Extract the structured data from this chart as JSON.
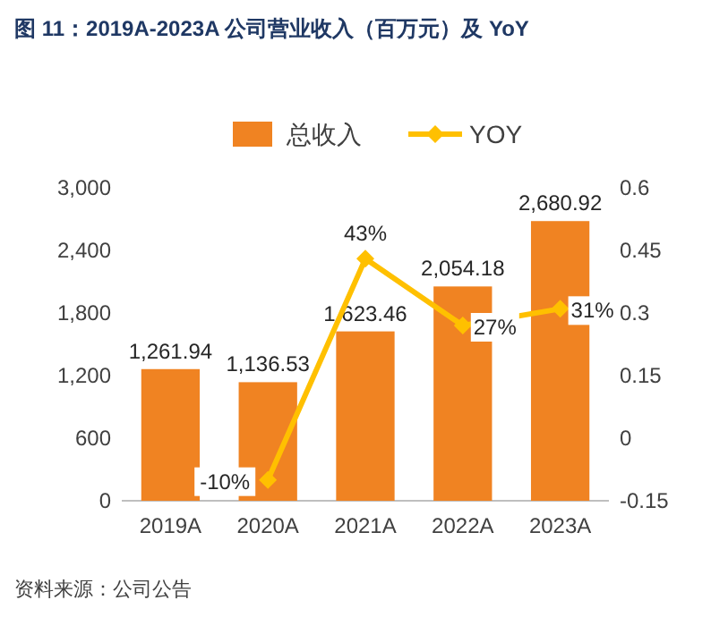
{
  "chart_data": {
    "type": "bar",
    "title": "图 11：2019A-2023A 公司营业收入（百万元）及 YoY",
    "categories": [
      "2019A",
      "2020A",
      "2021A",
      "2022A",
      "2023A"
    ],
    "series": [
      {
        "name": "总收入",
        "color": "#f08322",
        "values": [
          1261.94,
          1136.53,
          1623.46,
          2054.18,
          2680.92
        ],
        "value_labels": [
          "1,261.94",
          "1,136.53",
          "1,623.46",
          "2,054.18",
          "2,680.92"
        ]
      },
      {
        "name": "YOY",
        "type": "line",
        "axis": "y2",
        "color": "#ffc000",
        "marker": "diamond",
        "values": [
          null,
          -0.1,
          0.43,
          0.27,
          0.31
        ],
        "value_labels": [
          null,
          "-10%",
          "43%",
          "27%",
          "31%"
        ]
      }
    ],
    "ylim": [
      0,
      3000
    ],
    "yticks": [
      {
        "value": 0,
        "label": "0"
      },
      {
        "value": 600,
        "label": "600"
      },
      {
        "value": 1200,
        "label": "1,200"
      },
      {
        "value": 1800,
        "label": "1,800"
      },
      {
        "value": 2400,
        "label": "2,400"
      },
      {
        "value": 3000,
        "label": "3,000"
      }
    ],
    "y2lim": [
      -0.15,
      0.6
    ],
    "y2ticks": [
      -0.15,
      0,
      0.15,
      0.3,
      0.45,
      0.6
    ],
    "legend": "top",
    "annotations": [
      "资料来源：公司公告"
    ]
  }
}
